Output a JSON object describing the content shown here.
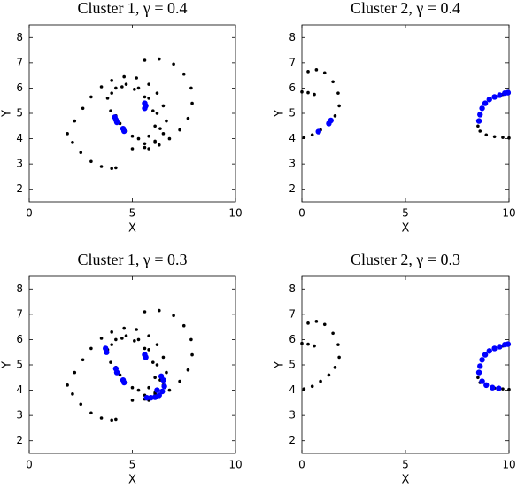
{
  "chart_data": [
    {
      "type": "scatter",
      "title": "Cluster 1, γ = 0.4",
      "x_label": "X",
      "y_label": "Y",
      "xlim": [
        0,
        10
      ],
      "ylim": [
        1.5,
        8.5
      ],
      "xticks": [
        0,
        5,
        10
      ],
      "yticks": [
        2,
        3,
        4,
        5,
        6,
        7,
        8
      ],
      "series": [
        {
          "color": "#000000",
          "x": [
            1.85,
            2.1,
            2.5,
            3,
            3.5,
            4,
            4.2,
            2.2,
            2.6,
            3,
            3.5,
            4,
            4.6,
            5.2,
            5.8,
            6.2,
            6.5,
            6.65,
            6.5,
            6.1,
            5.6,
            5,
            3.8,
            4.2,
            4.7,
            5.3,
            5.8,
            6.2,
            6.35,
            6.1,
            5.6,
            5,
            4.4,
            3.95,
            4,
            4.5,
            5.1,
            5.6,
            6,
            6.1,
            5.8,
            5.3,
            4.7,
            4.2,
            5.6,
            6.3,
            7,
            7.5,
            7.85,
            7.9,
            7.7,
            7.3,
            6.8,
            6.3,
            5.8
          ],
          "y": [
            4.2,
            3.85,
            3.45,
            3.1,
            2.9,
            2.82,
            2.85,
            4.7,
            5.2,
            5.65,
            6.05,
            6.3,
            6.45,
            6.4,
            6.15,
            5.8,
            5.3,
            4.7,
            4.2,
            3.85,
            3.65,
            3.6,
            5.6,
            6,
            6.15,
            6,
            5.6,
            5,
            4.4,
            3.9,
            3.8,
            4.1,
            4.6,
            5.1,
            5.8,
            6.05,
            5.95,
            5.65,
            5.1,
            4.5,
            4.1,
            4,
            4.3,
            4.9,
            7.1,
            7.15,
            6.95,
            6.55,
            6,
            5.4,
            4.8,
            4.35,
            4,
            3.75,
            3.6
          ]
        },
        {
          "color": "#0000ff",
          "x": [
            4.15,
            4.2,
            4.25,
            4.55,
            4.6,
            5.6,
            5.65,
            5.6
          ],
          "y": [
            4.85,
            4.75,
            4.65,
            4.4,
            4.3,
            5.4,
            5.3,
            5.2
          ]
        }
      ]
    },
    {
      "type": "scatter",
      "title": "Cluster 2, γ = 0.4",
      "x_label": "X",
      "y_label": "Y",
      "xlim": [
        0,
        10
      ],
      "ylim": [
        1.5,
        8.5
      ],
      "xticks": [
        0,
        5,
        10
      ],
      "yticks": [
        2,
        3,
        4,
        5,
        6,
        7,
        8
      ],
      "series": [
        {
          "color": "#000000",
          "x": [
            0,
            0.3,
            0.6,
            0.3,
            0.7,
            1.1,
            1.5,
            1.75,
            1.8,
            1.6,
            1.3,
            0.9,
            0.5,
            0.1,
            8.5,
            8.6,
            8.9,
            9.3,
            9.7,
            10,
            10,
            9.7
          ],
          "y": [
            5.85,
            5.82,
            5.75,
            6.65,
            6.72,
            6.6,
            6.25,
            5.8,
            5.3,
            4.9,
            4.6,
            4.35,
            4.15,
            4.05,
            4.5,
            4.3,
            4.15,
            4.08,
            4.05,
            4.03,
            5.8,
            5.75
          ]
        },
        {
          "color": "#0000ff",
          "x": [
            0.8,
            1.3,
            1.4,
            8.55,
            8.6,
            8.7,
            8.85,
            9.05,
            9.3,
            9.55,
            9.8,
            9.95
          ],
          "y": [
            4.28,
            4.6,
            4.72,
            4.7,
            4.95,
            5.2,
            5.4,
            5.55,
            5.65,
            5.72,
            5.8,
            5.82
          ]
        }
      ]
    },
    {
      "type": "scatter",
      "title": "Cluster 1, γ = 0.3",
      "x_label": "X",
      "y_label": "Y",
      "xlim": [
        0,
        10
      ],
      "ylim": [
        1.5,
        8.5
      ],
      "xticks": [
        0,
        5,
        10
      ],
      "yticks": [
        2,
        3,
        4,
        5,
        6,
        7,
        8
      ],
      "series": [
        {
          "color": "#000000",
          "x": [
            1.85,
            2.1,
            2.5,
            3,
            3.5,
            4,
            4.2,
            2.2,
            2.6,
            3,
            3.5,
            4,
            4.6,
            5.2,
            5.8,
            6.2,
            6.5,
            6.65,
            6.5,
            6.1,
            5.6,
            5,
            3.8,
            4.2,
            4.7,
            5.3,
            5.8,
            6.2,
            6.35,
            6.1,
            5.6,
            5,
            4.4,
            3.95,
            4,
            4.5,
            5.1,
            5.6,
            6,
            6.1,
            5.8,
            5.3,
            4.7,
            4.2,
            5.6,
            6.3,
            7,
            7.5,
            7.85,
            7.9,
            7.7,
            7.3,
            6.8,
            6.3,
            5.8
          ],
          "y": [
            4.2,
            3.85,
            3.45,
            3.1,
            2.9,
            2.82,
            2.85,
            4.7,
            5.2,
            5.65,
            6.05,
            6.3,
            6.45,
            6.4,
            6.15,
            5.8,
            5.3,
            4.7,
            4.2,
            3.85,
            3.65,
            3.6,
            5.6,
            6,
            6.15,
            6,
            5.6,
            5,
            4.4,
            3.9,
            3.8,
            4.1,
            4.6,
            5.1,
            5.8,
            6.05,
            5.95,
            5.65,
            5.1,
            4.5,
            4.1,
            4,
            4.3,
            4.9,
            7.1,
            7.15,
            6.95,
            6.55,
            6,
            5.4,
            4.8,
            4.35,
            4,
            3.75,
            3.6
          ]
        },
        {
          "color": "#0000ff",
          "x": [
            3.7,
            3.75,
            4.2,
            4.25,
            4.55,
            4.6,
            5.6,
            5.65,
            5.7,
            5.9,
            6.1,
            6.3,
            6.45,
            6.55,
            6.5,
            6.4,
            6.2
          ],
          "y": [
            5.65,
            5.5,
            4.85,
            4.7,
            4.4,
            4.3,
            5.4,
            5.3,
            3.7,
            3.7,
            3.72,
            3.8,
            3.95,
            4.15,
            4.4,
            4.55,
            4
          ]
        }
      ]
    },
    {
      "type": "scatter",
      "title": "Cluster 2, γ = 0.3",
      "x_label": "X",
      "y_label": "Y",
      "xlim": [
        0,
        10
      ],
      "ylim": [
        1.5,
        8.5
      ],
      "xticks": [
        0,
        5,
        10
      ],
      "yticks": [
        2,
        3,
        4,
        5,
        6,
        7,
        8
      ],
      "series": [
        {
          "color": "#000000",
          "x": [
            0,
            0.3,
            0.6,
            0.3,
            0.7,
            1.1,
            1.5,
            1.75,
            1.8,
            1.6,
            1.3,
            0.9,
            0.5,
            0.1,
            8.5,
            8.6,
            8.9,
            9.3,
            9.7,
            10,
            10,
            9.7
          ],
          "y": [
            5.85,
            5.82,
            5.75,
            6.65,
            6.72,
            6.6,
            6.25,
            5.8,
            5.3,
            4.9,
            4.6,
            4.35,
            4.15,
            4.05,
            4.5,
            4.3,
            4.15,
            4.08,
            4.05,
            4.03,
            5.8,
            5.75
          ]
        },
        {
          "color": "#0000ff",
          "x": [
            8.55,
            8.6,
            8.7,
            8.85,
            9.05,
            9.3,
            9.55,
            9.8,
            9.95,
            8.7,
            8.9,
            9.2,
            9.5
          ],
          "y": [
            4.7,
            4.95,
            5.2,
            5.4,
            5.55,
            5.65,
            5.72,
            5.8,
            5.82,
            4.35,
            4.2,
            4.1,
            4.07
          ]
        }
      ]
    }
  ]
}
